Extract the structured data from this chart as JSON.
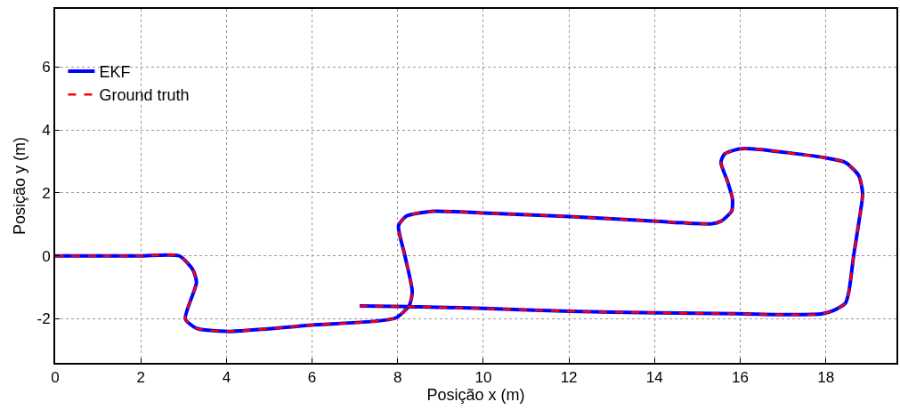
{
  "chart_data": {
    "type": "line",
    "xlabel": "Posição x (m)",
    "ylabel": "Posição y (m)",
    "xlim": [
      0,
      19.65
    ],
    "ylim": [
      -3.4,
      7.85
    ],
    "xticks": [
      0,
      2,
      4,
      6,
      8,
      10,
      12,
      14,
      16,
      18
    ],
    "yticks": [
      -2,
      0,
      2,
      4,
      6
    ],
    "grid": true,
    "legend": "top left",
    "x": [
      0,
      1,
      2,
      2.9,
      3.22,
      3.3,
      3.04,
      3.3,
      3.99,
      5.99,
      7.94,
      8.27,
      8.34,
      8.17,
      8.02,
      8.21,
      8.84,
      10.02,
      12.02,
      14.03,
      15.34,
      15.55,
      15.8,
      15.82,
      15.7,
      15.55,
      15.63,
      15.97,
      16.32,
      17.98,
      18.46,
      18.77,
      18.86,
      18.77,
      18.65,
      18.54,
      18.46,
      18.19,
      17.92,
      17.21,
      15.97,
      14.03,
      12.02,
      10.02,
      8.27,
      7.11
    ],
    "series": [
      {
        "name": "EKF",
        "color": "#0000ff",
        "line_style": "solid",
        "values": [
          0,
          0,
          0,
          0,
          -0.45,
          -0.85,
          -2.0,
          -2.3,
          -2.4,
          -2.2,
          -1.98,
          -1.58,
          -1.13,
          0,
          0.96,
          1.27,
          1.42,
          1.36,
          1.25,
          1.1,
          1.02,
          1.1,
          1.42,
          1.81,
          2.38,
          2.97,
          3.23,
          3.4,
          3.4,
          3.12,
          2.97,
          2.55,
          1.98,
          1.05,
          0,
          -1.13,
          -1.5,
          -1.73,
          -1.84,
          -1.87,
          -1.84,
          -1.81,
          -1.76,
          -1.67,
          -1.61,
          -1.59
        ]
      },
      {
        "name": "Ground truth",
        "color": "#ff0000",
        "line_style": "dashed",
        "values": [
          0,
          0,
          0,
          0,
          -0.45,
          -0.85,
          -2.0,
          -2.3,
          -2.4,
          -2.2,
          -1.98,
          -1.58,
          -1.13,
          0,
          0.96,
          1.27,
          1.42,
          1.36,
          1.25,
          1.1,
          1.02,
          1.1,
          1.42,
          1.81,
          2.38,
          2.97,
          3.23,
          3.4,
          3.4,
          3.12,
          2.97,
          2.55,
          1.98,
          1.05,
          0,
          -1.13,
          -1.5,
          -1.73,
          -1.84,
          -1.87,
          -1.84,
          -1.81,
          -1.76,
          -1.67,
          -1.61,
          -1.59
        ]
      }
    ]
  }
}
